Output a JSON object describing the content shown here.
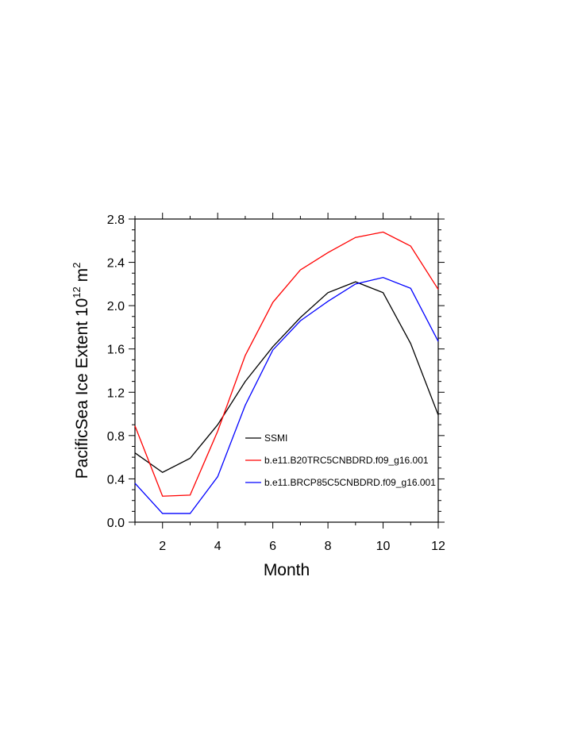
{
  "chart_data": {
    "type": "line",
    "title": "",
    "xlabel": "Month",
    "ylabel_main": "PacificSea Ice Extent 10",
    "ylabel_sup": "12",
    "ylabel_tail": " m",
    "ylabel_sup2": "2",
    "xlim": [
      1,
      12
    ],
    "ylim": [
      0.0,
      2.8
    ],
    "xticks": [
      2,
      4,
      6,
      8,
      10,
      12
    ],
    "yticks": [
      0.0,
      0.4,
      0.8,
      1.2,
      1.6,
      2.0,
      2.4,
      2.8
    ],
    "ytick_labels": [
      "0.0",
      "0.4",
      "0.8",
      "1.2",
      "1.6",
      "2.0",
      "2.4",
      "2.8"
    ],
    "xtick_labels": [
      "2",
      "4",
      "6",
      "8",
      "10",
      "12"
    ],
    "grid": false,
    "legend_placement": "bottom-right",
    "x": [
      1,
      2,
      3,
      4,
      5,
      6,
      7,
      8,
      9,
      10,
      11,
      12
    ],
    "series": [
      {
        "name": "SSMI",
        "color": "#000000",
        "values": [
          0.64,
          0.46,
          0.59,
          0.9,
          1.3,
          1.62,
          1.89,
          2.12,
          2.22,
          2.12,
          1.65,
          0.99
        ]
      },
      {
        "name": "b.e11.B20TRC5CNBDRD.f09_g16.001",
        "color": "#ff0000",
        "values": [
          0.89,
          0.24,
          0.25,
          0.84,
          1.54,
          2.03,
          2.33,
          2.49,
          2.63,
          2.68,
          2.55,
          2.15
        ]
      },
      {
        "name": "b.e11.BRCP85C5CNBDRD.f09_g16.001",
        "color": "#0000ff",
        "values": [
          0.36,
          0.08,
          0.08,
          0.42,
          1.08,
          1.59,
          1.86,
          2.04,
          2.2,
          2.26,
          2.16,
          1.67
        ]
      }
    ]
  }
}
